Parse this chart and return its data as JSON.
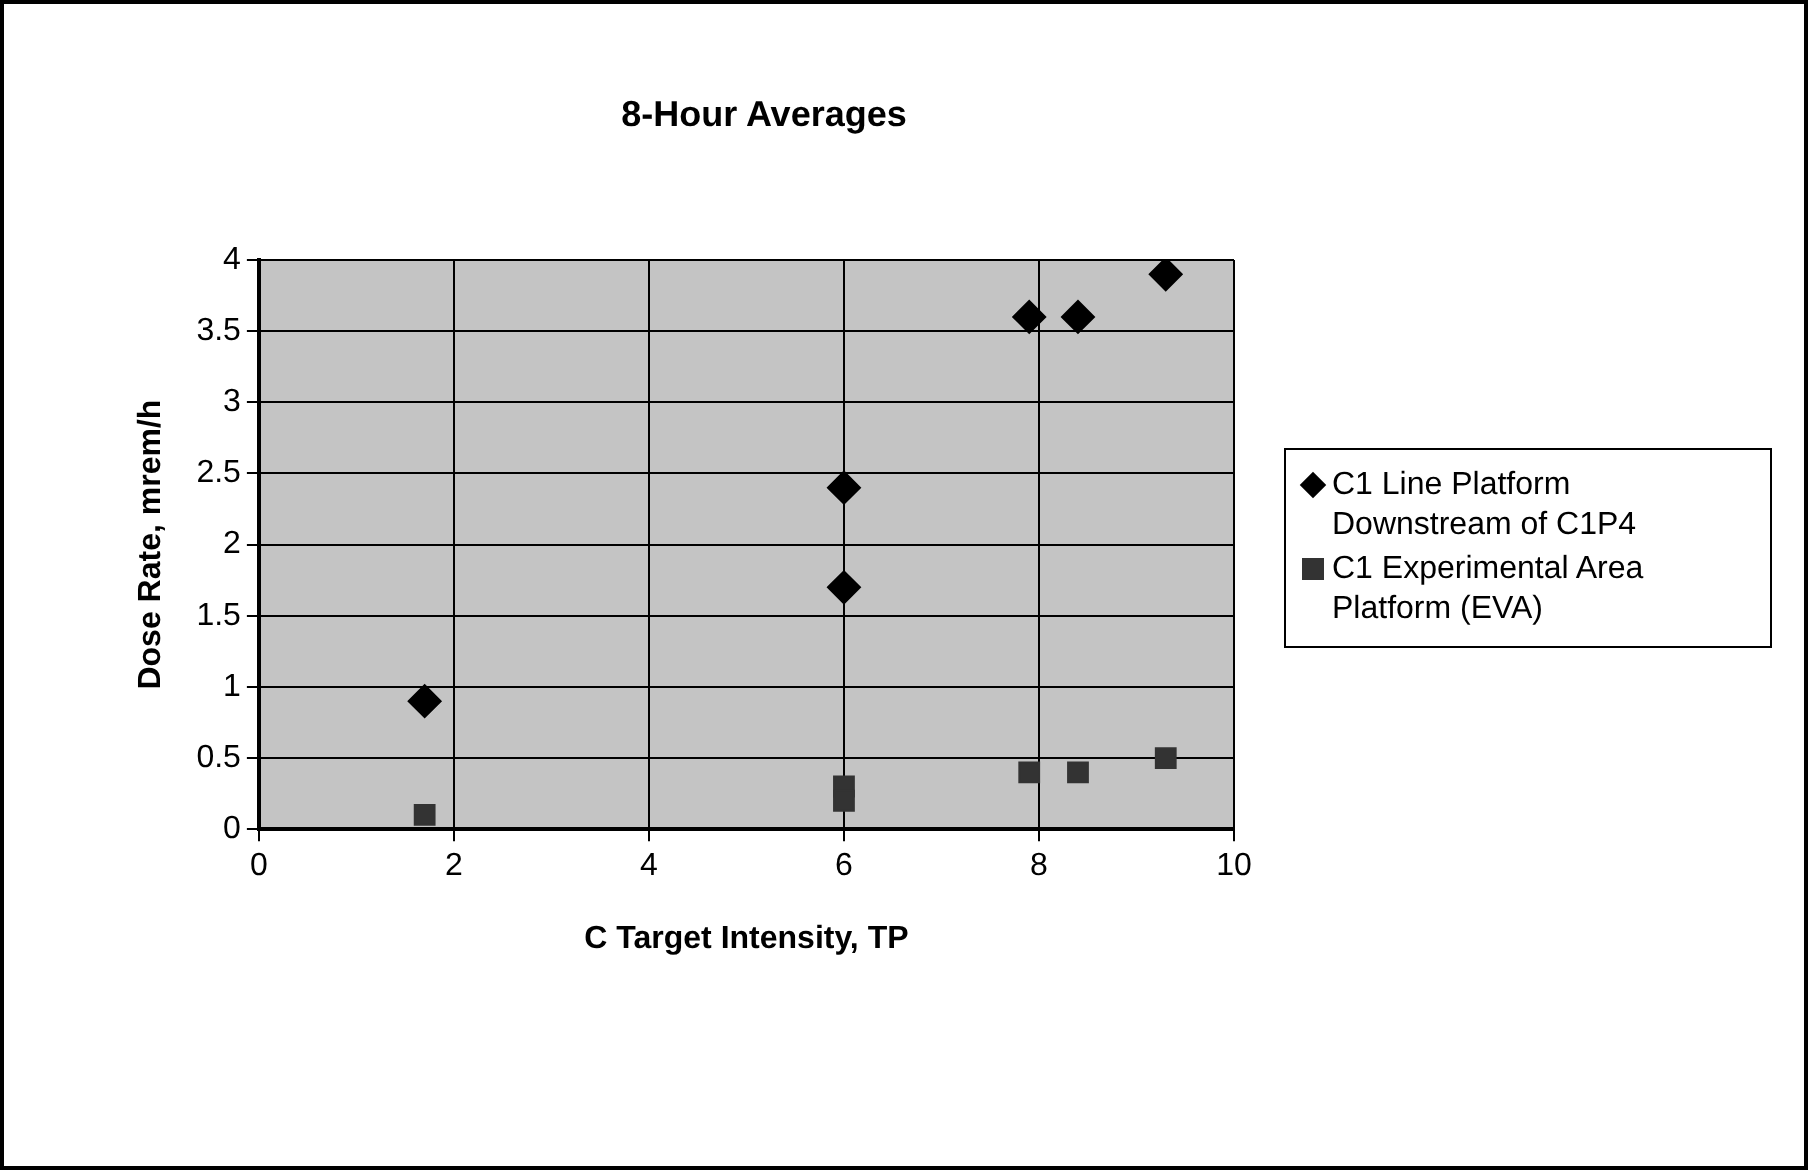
{
  "chart_data": {
    "type": "scatter",
    "title": "8-Hour Averages",
    "xlabel": "C Target Intensity, TP",
    "ylabel": "Dose Rate, mrem/h",
    "xlim": [
      0,
      10
    ],
    "xticks": [
      0,
      2,
      4,
      6,
      8,
      10
    ],
    "ylim": [
      0,
      4
    ],
    "yticks": [
      0,
      0.5,
      1,
      1.5,
      2,
      2.5,
      3,
      3.5,
      4
    ],
    "grid": true,
    "legend": "right",
    "series": [
      {
        "name": "C1 Line Platform Downstream of C1P4",
        "color": "#000000",
        "marker": "diamond",
        "x": [
          1.7,
          6.0,
          6.0,
          7.9,
          8.4,
          9.3
        ],
        "values": [
          0.9,
          2.4,
          1.7,
          3.6,
          3.6,
          3.9
        ]
      },
      {
        "name": "C1 Experimental Area Platform (EVA)",
        "color": "#333333",
        "marker": "square",
        "x": [
          1.7,
          6.0,
          6.0,
          7.9,
          8.4,
          9.3
        ],
        "values": [
          0.1,
          0.3,
          0.2,
          0.4,
          0.4,
          0.5
        ]
      }
    ]
  }
}
